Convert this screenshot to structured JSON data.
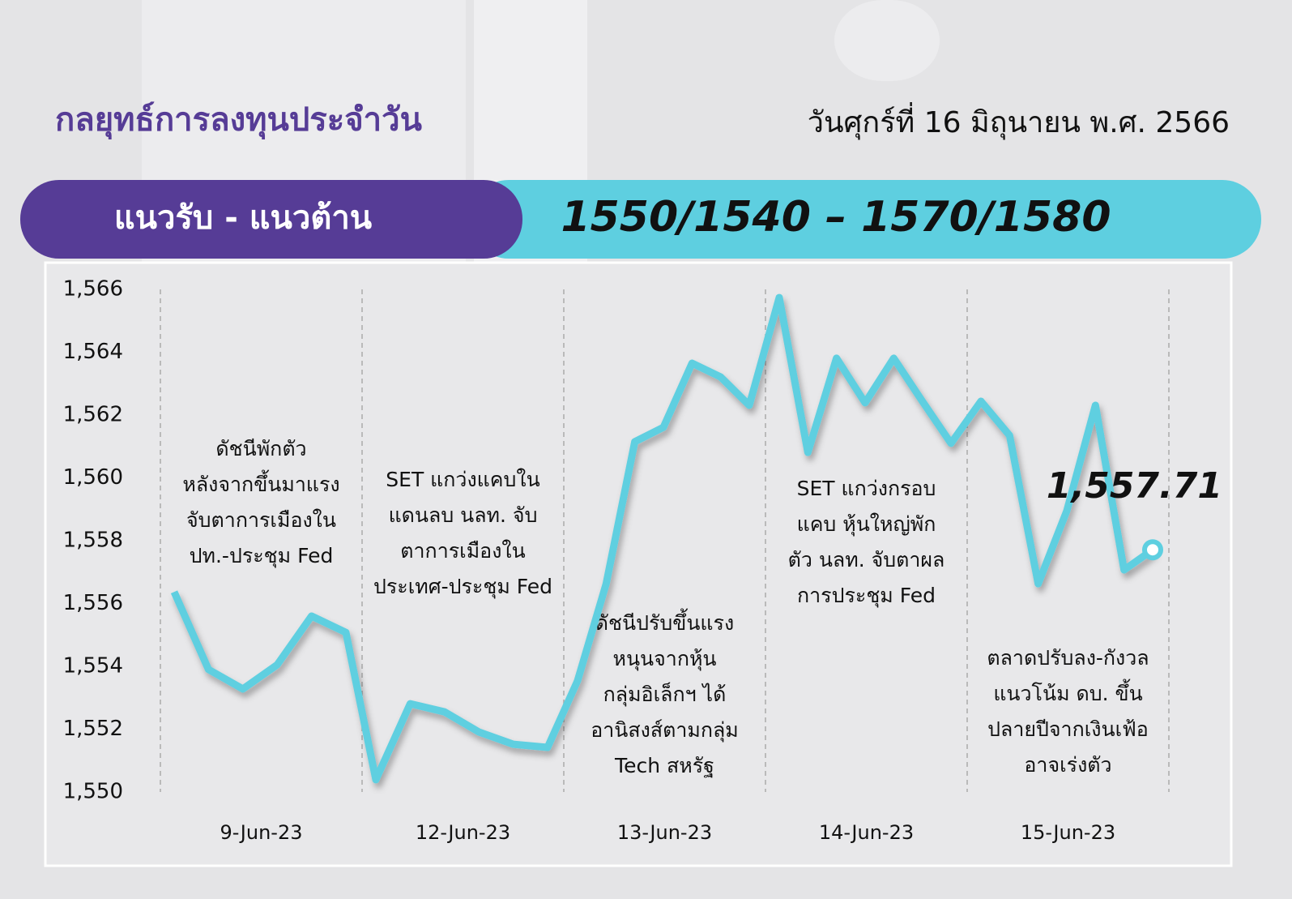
{
  "header": {
    "title": "กลยุทธ์การลงทุนประจำวัน",
    "date": "วันศุกร์ที่ 16 มิถุนายน พ.ศ. 2566",
    "range_label": "แนวรับ - แนวต้าน",
    "range_value": "1550/1540 – 1570/1580"
  },
  "chart_data": {
    "type": "line",
    "color": "#5ecfe0",
    "categories": [
      "9-Jun-23",
      "12-Jun-23",
      "13-Jun-23",
      "14-Jun-23",
      "15-Jun-23"
    ],
    "values": [
      [
        1556.37,
        1553.9,
        1553.28,
        1554.05,
        1555.6,
        1555.08
      ],
      [
        1550.39,
        1552.81,
        1552.55,
        1551.91,
        1551.52,
        1551.42
      ],
      [
        1553.54,
        1556.63,
        1561.15,
        1561.61,
        1563.65,
        1563.21,
        1562.31
      ],
      [
        1565.74,
        1560.81,
        1563.81,
        1562.39,
        1563.81,
        1562.44,
        1561.1
      ],
      [
        1562.44,
        1561.35,
        1556.63,
        1558.95,
        1562.31,
        1557.07,
        1557.71
      ]
    ],
    "last_label": "1,557.71",
    "ylim": [
      1550,
      1566
    ],
    "yticks": [
      {
        "value": 1550,
        "label": "1,550"
      },
      {
        "value": 1552,
        "label": "1,552"
      },
      {
        "value": 1554,
        "label": "1,554"
      },
      {
        "value": 1556,
        "label": "1,556"
      },
      {
        "value": 1558,
        "label": "1,558"
      },
      {
        "value": 1560,
        "label": "1,560"
      },
      {
        "value": 1562,
        "label": "1,562"
      },
      {
        "value": 1564,
        "label": "1,564"
      },
      {
        "value": 1566,
        "label": "1,566"
      }
    ],
    "annotations": [
      [
        "ดัชนีพักตัว",
        "หลังจากขึ้นมาแรง",
        "จับตาการเมืองใน",
        "ปท.-ประชุม Fed"
      ],
      [
        "SET  แกว่งแคบใน",
        "แดนลบ นลท. จับ",
        "ตาการเมืองใน",
        "ประเทศ-ประชุม Fed"
      ],
      [
        "ดัชนีปรับขึ้นแรง",
        "หนุนจากหุ้น",
        "กลุ่มอิเล็กฯ ได้",
        "อานิสงส์ตามกลุ่ม",
        "Tech สหรัฐ"
      ],
      [
        "SET แกว่งกรอบ",
        "แคบ หุ้นใหญ่พัก",
        "ตัว นลท. จับตาผล",
        "การประชุม Fed"
      ],
      [
        "ตลาดปรับลง-กังวล",
        "แนวโน้ม ดบ. ขึ้น",
        "ปลายปีจากเงินเฟ้อ",
        "อาจเร่งตัว"
      ]
    ]
  }
}
